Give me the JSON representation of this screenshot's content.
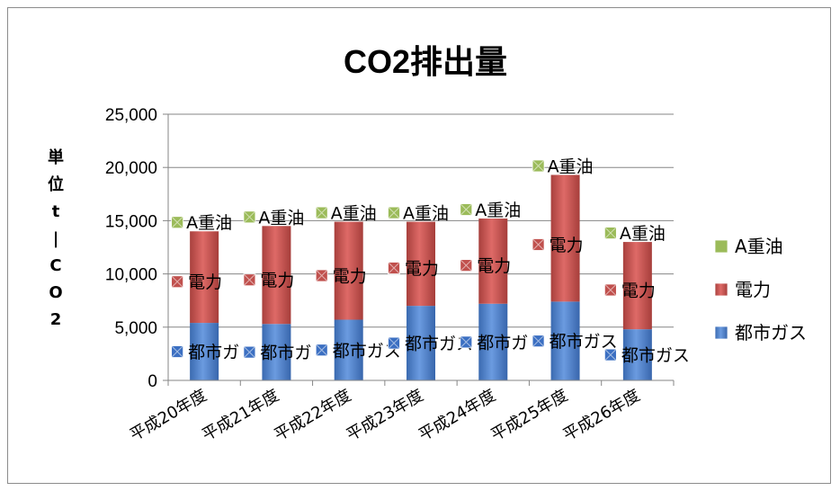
{
  "chart_data": {
    "type": "bar",
    "stacked": true,
    "title": "CO2排出量",
    "ylabel_chars": [
      "単",
      "位",
      "t",
      "|",
      "C",
      "O",
      "2"
    ],
    "ylim": [
      0,
      25000
    ],
    "yticks": [
      "0",
      "5,000",
      "10,000",
      "15,000",
      "20,000",
      "25,000"
    ],
    "ytick_values": [
      0,
      5000,
      10000,
      15000,
      20000,
      25000
    ],
    "grid": true,
    "legend_position": "right",
    "categories": [
      "平成20年度",
      "平成21年度",
      "平成22年度",
      "平成23年度",
      "平成24年度",
      "平成25年度",
      "平成26年度"
    ],
    "series": [
      {
        "name": "都市ガス",
        "color": "#4a7ebb",
        "marker_color": "#3b6fc2",
        "values": [
          5400,
          5300,
          5700,
          7000,
          7200,
          7400,
          4800
        ]
      },
      {
        "name": "電力",
        "color": "#c0504d",
        "marker_color": "#c0504d",
        "values": [
          8600,
          9200,
          9200,
          7900,
          8000,
          11900,
          8200
        ]
      },
      {
        "name": "A重油",
        "color": "#9bbb59",
        "marker_color": "#9bbb59",
        "values": [
          0,
          0,
          0,
          0,
          0,
          0,
          0
        ]
      }
    ],
    "data_labels": {
      "都市ガス": [
        "都市ガ",
        "都市ガ",
        "都市ガス",
        "都市ガス",
        "都市ガ",
        "都市ガス",
        "都市ガス"
      ],
      "電力": [
        "電力",
        "電力",
        "電力",
        "電力",
        "電力",
        "電力",
        "電力"
      ],
      "A重油": [
        "A重油",
        "A重油",
        "A重油",
        "A重油",
        "A重油",
        "A重油",
        "A重油"
      ]
    },
    "legend": [
      "A重油",
      "電力",
      "都市ガス"
    ]
  }
}
